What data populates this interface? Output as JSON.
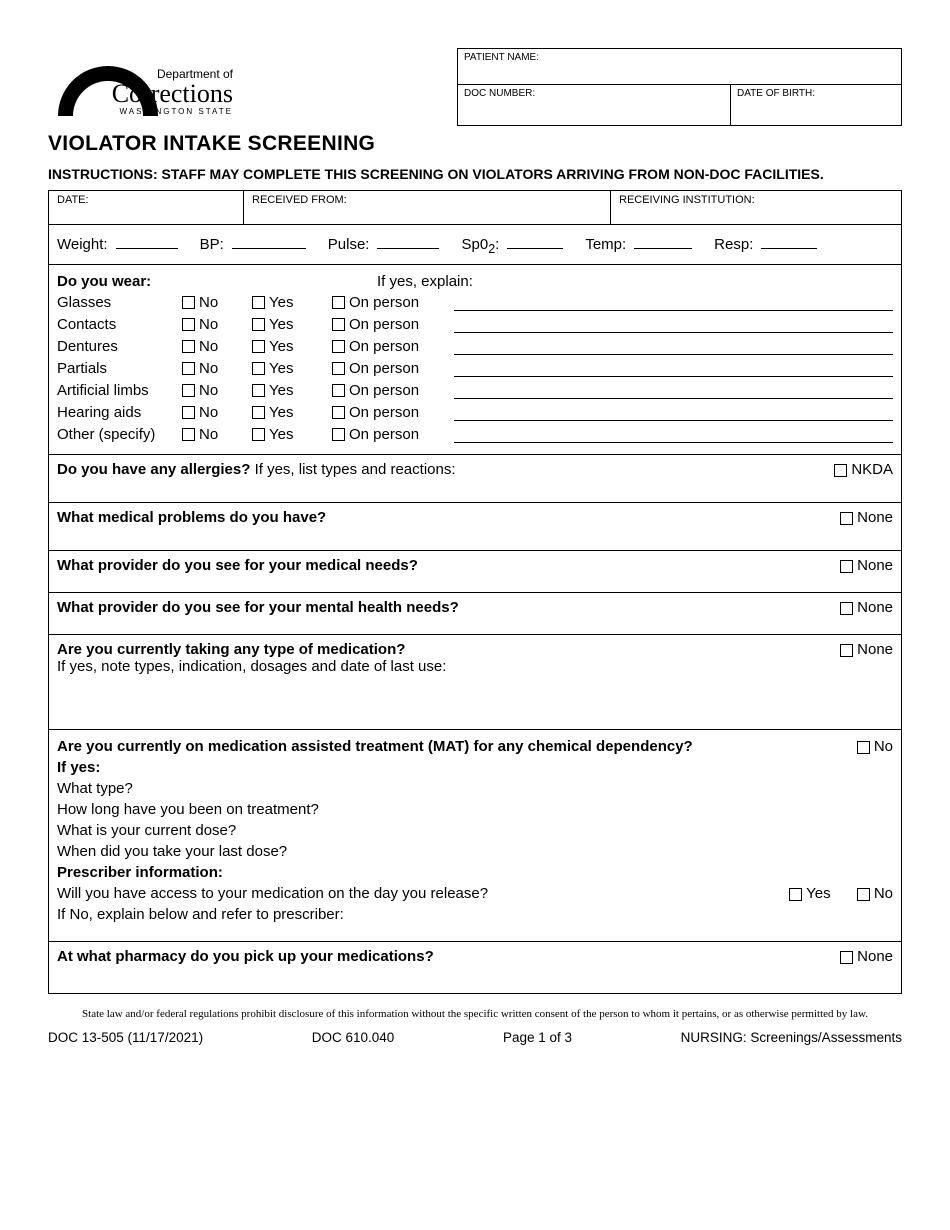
{
  "colors": {
    "text": "#000000",
    "background": "#ffffff",
    "border": "#000000"
  },
  "typography": {
    "body_family": "Arial",
    "body_size_pt": 11,
    "disclaimer_family": "Times New Roman",
    "disclaimer_size_pt": 8
  },
  "logo": {
    "line1": "Department of",
    "line2": "Corrections",
    "line3": "WASHINGTON STATE"
  },
  "patient_box": {
    "name_label": "PATIENT NAME:",
    "doc_label": "DOC NUMBER:",
    "dob_label": "DATE OF BIRTH:"
  },
  "title": "VIOLATOR INTAKE SCREENING",
  "instructions": "INSTRUCTIONS:  STAFF MAY COMPLETE THIS SCREENING ON VIOLATORS ARRIVING FROM NON-DOC FACILITIES.",
  "top_fields": {
    "date": "DATE:",
    "received_from": "RECEIVED FROM:",
    "receiving_inst": "RECEIVING INSTITUTION:"
  },
  "vitals": {
    "weight": "Weight:",
    "bp": "BP:",
    "pulse": "Pulse:",
    "sp02": "Sp0",
    "sp02_sub": "2",
    "sp02_colon": ":",
    "temp": "Temp:",
    "resp": "Resp:"
  },
  "wear": {
    "header": "Do you wear:",
    "explain_header": "If yes, explain:",
    "no": "No",
    "yes": "Yes",
    "on_person": "On person",
    "items": [
      "Glasses",
      "Contacts",
      "Dentures",
      "Partials",
      "Artificial limbs",
      "Hearing aids",
      "Other (specify)"
    ]
  },
  "questions": {
    "allergies_q": "Do you have any allergies?",
    "allergies_sub": "  If yes, list types and reactions:",
    "nkda": "NKDA",
    "med_problems": "What medical problems do you have?",
    "none": "None",
    "provider_med": "What provider do you see for your medical needs?",
    "provider_mh": "What provider do you see for your mental health needs?",
    "meds_q": "Are you currently taking any type of medication?",
    "meds_sub": "If yes, note types, indication, dosages and date of last use:",
    "mat_q": "Are you currently on medication assisted treatment (MAT) for any chemical dependency?",
    "no": "No",
    "yes": "Yes",
    "if_yes": "If yes:",
    "mat_type": "What type?",
    "mat_duration": "How long have you been on treatment?",
    "mat_dose": "What is your current dose?",
    "mat_last": "When did you take your last dose?",
    "prescriber": "Prescriber information:",
    "access_q": "Will you have access to your medication on the day you release?",
    "if_no": "If No, explain below and refer to prescriber:",
    "pharmacy": "At what pharmacy do you pick up your medications?"
  },
  "disclaimer": "State law and/or federal regulations prohibit disclosure of this information without the specific written consent of the person to whom it pertains, or as otherwise permitted by law.",
  "footer": {
    "form_id": "DOC 13-505 (11/17/2021)",
    "doc_ref": "DOC 610.040",
    "page": "Page 1 of 3",
    "category": "NURSING: Screenings/Assessments"
  }
}
